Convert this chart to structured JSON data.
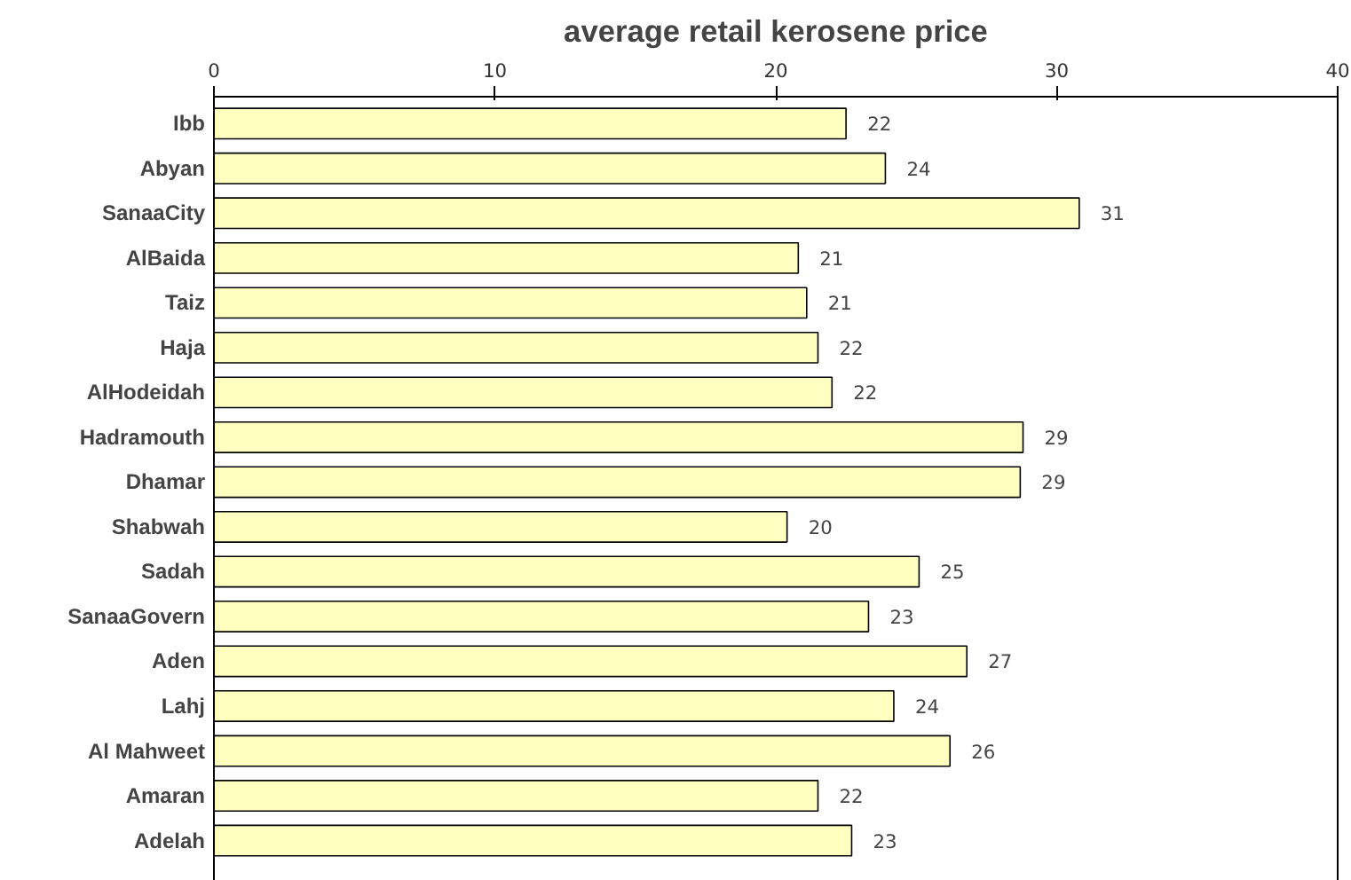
{
  "chart_data": {
    "type": "bar",
    "title": "average retail kerosene price",
    "orientation": "horizontal",
    "categories": [
      "Ibb",
      "Abyan",
      "SanaaCity",
      "AlBaida",
      "Taiz",
      "Haja",
      "AlHodeidah",
      "Hadramouth",
      "Dhamar",
      "Shabwah",
      "Sadah",
      "SanaaGovern",
      "Aden",
      "Lahj",
      "Al Mahweet",
      "Amaran",
      "Adelah"
    ],
    "values": [
      22.5,
      23.9,
      30.8,
      20.8,
      21.1,
      21.5,
      22.0,
      28.8,
      28.7,
      20.4,
      25.1,
      23.3,
      26.8,
      24.2,
      26.2,
      21.5,
      22.7
    ],
    "value_labels": [
      "22",
      "24",
      "31",
      "21",
      "21",
      "22",
      "22",
      "29",
      "29",
      "20",
      "25",
      "23",
      "27",
      "24",
      "26",
      "22",
      "23"
    ],
    "color": "#ffffc0",
    "xlim": [
      0,
      40
    ],
    "xticks": [
      0,
      10,
      20,
      30,
      40
    ],
    "grid": false
  }
}
